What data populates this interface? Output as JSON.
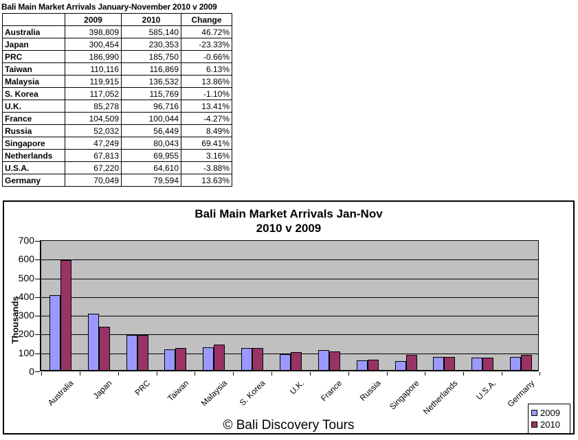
{
  "table": {
    "title": "Bali Main Market Arrivals January-November 2010 v 2009",
    "columns": [
      "",
      "2009",
      "2010",
      "Change"
    ],
    "rows": [
      {
        "market": "Australia",
        "y2009": "398,809",
        "y2010": "585,140",
        "change": "46.72%"
      },
      {
        "market": "Japan",
        "y2009": "300,454",
        "y2010": "230,353",
        "change": "-23.33%"
      },
      {
        "market": "PRC",
        "y2009": "186,990",
        "y2010": "185,750",
        "change": "-0.66%"
      },
      {
        "market": "Taiwan",
        "y2009": "110,116",
        "y2010": "116,869",
        "change": "6.13%"
      },
      {
        "market": "Malaysia",
        "y2009": "119,915",
        "y2010": "136,532",
        "change": "13.86%"
      },
      {
        "market": "S. Korea",
        "y2009": "117,052",
        "y2010": "115,769",
        "change": "-1.10%"
      },
      {
        "market": "U.K.",
        "y2009": "85,278",
        "y2010": "96,716",
        "change": "13.41%"
      },
      {
        "market": "France",
        "y2009": "104,509",
        "y2010": "100,044",
        "change": "-4.27%"
      },
      {
        "market": "Russia",
        "y2009": "52,032",
        "y2010": "56,449",
        "change": "8.49%"
      },
      {
        "market": "Singapore",
        "y2009": "47,249",
        "y2010": "80,043",
        "change": "69.41%"
      },
      {
        "market": "Netherlands",
        "y2009": "67,813",
        "y2010": "69,955",
        "change": "3.16%"
      },
      {
        "market": "U.S.A.",
        "y2009": "67,220",
        "y2010": "64,610",
        "change": "-3.88%"
      },
      {
        "market": "Germany",
        "y2009": "70,049",
        "y2010": "79,594",
        "change": "13.63%"
      }
    ]
  },
  "chart_data": {
    "type": "bar",
    "title": "Bali Main Market Arrivals Jan-Nov 2010 v 2009",
    "title_lines": [
      "Bali Main Market Arrivals Jan-Nov",
      "2010 v 2009"
    ],
    "categories": [
      "Australia",
      "Japan",
      "PRC",
      "Taiwan",
      "Malaysia",
      "S. Korea",
      "U.K.",
      "France",
      "Russia",
      "Singapore",
      "Netherlands",
      "U.S.A.",
      "Germany"
    ],
    "series": [
      {
        "name": "2009",
        "color": "#9999FF",
        "values": [
          398.809,
          300.454,
          186.99,
          110.116,
          119.915,
          117.052,
          85.278,
          104.509,
          52.032,
          47.249,
          67.813,
          67.22,
          70.049
        ]
      },
      {
        "name": "2010",
        "color": "#993366",
        "values": [
          585.14,
          230.353,
          185.75,
          116.869,
          136.532,
          115.769,
          96.716,
          100.044,
          56.449,
          80.043,
          69.955,
          64.61,
          79.594
        ]
      }
    ],
    "units": "thousands",
    "xlabel": "",
    "ylabel": "Thousands",
    "ylim": [
      0,
      700
    ],
    "yticks": [
      0,
      100,
      200,
      300,
      400,
      500,
      600,
      700
    ],
    "grid": true,
    "plot_bg": "#C0C0C0",
    "legend_position": "bottom-right",
    "footer": "© Bali Discovery Tours"
  }
}
